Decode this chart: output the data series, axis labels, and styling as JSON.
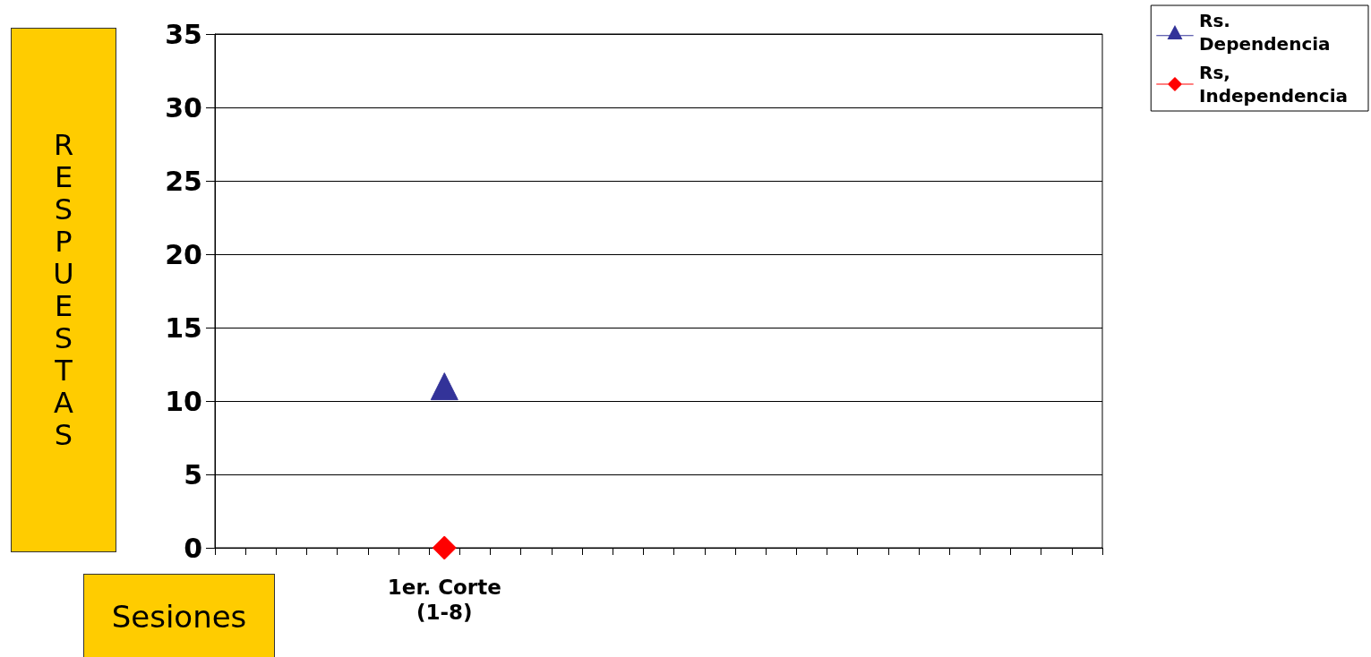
{
  "chart_data": {
    "type": "line",
    "xlabel": "Sesiones",
    "ylabel": "RESPUESTAS",
    "categories": [
      null,
      null,
      null,
      null,
      null,
      null,
      null,
      "1er. Corte\n(1-8)",
      null,
      null,
      null,
      null,
      null,
      null,
      null,
      null,
      null,
      null,
      null,
      null,
      null,
      null,
      null,
      null,
      null,
      null,
      null,
      null,
      null
    ],
    "series": [
      {
        "name": "Rs. Dependencia",
        "color": "#333399",
        "marker": "triangle",
        "values": [
          null,
          null,
          null,
          null,
          null,
          null,
          null,
          11,
          null,
          null,
          null,
          null,
          null,
          null,
          null,
          null,
          null,
          null,
          null,
          null,
          null,
          null,
          null,
          null,
          null,
          null,
          null,
          null,
          null
        ]
      },
      {
        "name": "Rs, Independencia",
        "color": "#ff0000",
        "marker": "diamond",
        "values": [
          null,
          null,
          null,
          null,
          null,
          null,
          null,
          0,
          null,
          null,
          null,
          null,
          null,
          null,
          null,
          null,
          null,
          null,
          null,
          null,
          null,
          null,
          null,
          null,
          null,
          null,
          null,
          null,
          null
        ]
      }
    ],
    "ylim": [
      0,
      35
    ],
    "yticks": [
      0,
      5,
      10,
      15,
      20,
      25,
      30,
      35
    ],
    "grid": "y",
    "legend": "top right"
  }
}
